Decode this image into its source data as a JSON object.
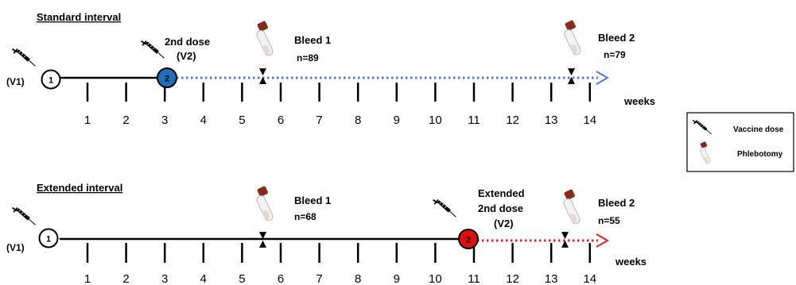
{
  "panels": [
    {
      "id": "standard",
      "heading": "Standard interval",
      "ticks": [
        "1",
        "2",
        "3",
        "4",
        "5",
        "6",
        "7",
        "8",
        "9",
        "10",
        "11",
        "12",
        "13",
        "14"
      ],
      "unit": "weeks",
      "dose1": {
        "number": "1",
        "label": "(V1)",
        "color": "#ffffff"
      },
      "dose2": {
        "number": "2",
        "label_lines": [
          "2nd dose",
          "(V2)"
        ],
        "color": "#1f6fbf",
        "week": 3
      },
      "bleed1": {
        "title": "Bleed 1",
        "n": "n=89",
        "week": 5.5
      },
      "bleed2": {
        "title": "Bleed 2",
        "n": "n=79",
        "week": 13.5
      },
      "dotted_color": "#4a7cc9"
    },
    {
      "id": "extended",
      "heading": "Extended interval",
      "ticks": [
        "1",
        "2",
        "3",
        "4",
        "5",
        "6",
        "7",
        "8",
        "9",
        "10",
        "11",
        "12",
        "13",
        "14"
      ],
      "unit": "weeks",
      "dose1": {
        "number": "1",
        "label": "(V1)",
        "color": "#ffffff"
      },
      "dose2": {
        "number": "2",
        "label_lines": [
          "Extended",
          "2nd dose",
          "(V2)"
        ],
        "color": "#e01010",
        "week": 11
      },
      "bleed1": {
        "title": "Bleed 1",
        "n": "n=68",
        "week": 5.5
      },
      "bleed2": {
        "title": "Bleed 2",
        "n": "n=55",
        "week": 13.5
      },
      "dotted_color": "#e82020"
    }
  ],
  "legend": {
    "items": [
      {
        "icon": "syringe-icon",
        "label": "Vaccine dose"
      },
      {
        "icon": "blood-tube-icon",
        "label": "Phlebotomy"
      }
    ]
  }
}
